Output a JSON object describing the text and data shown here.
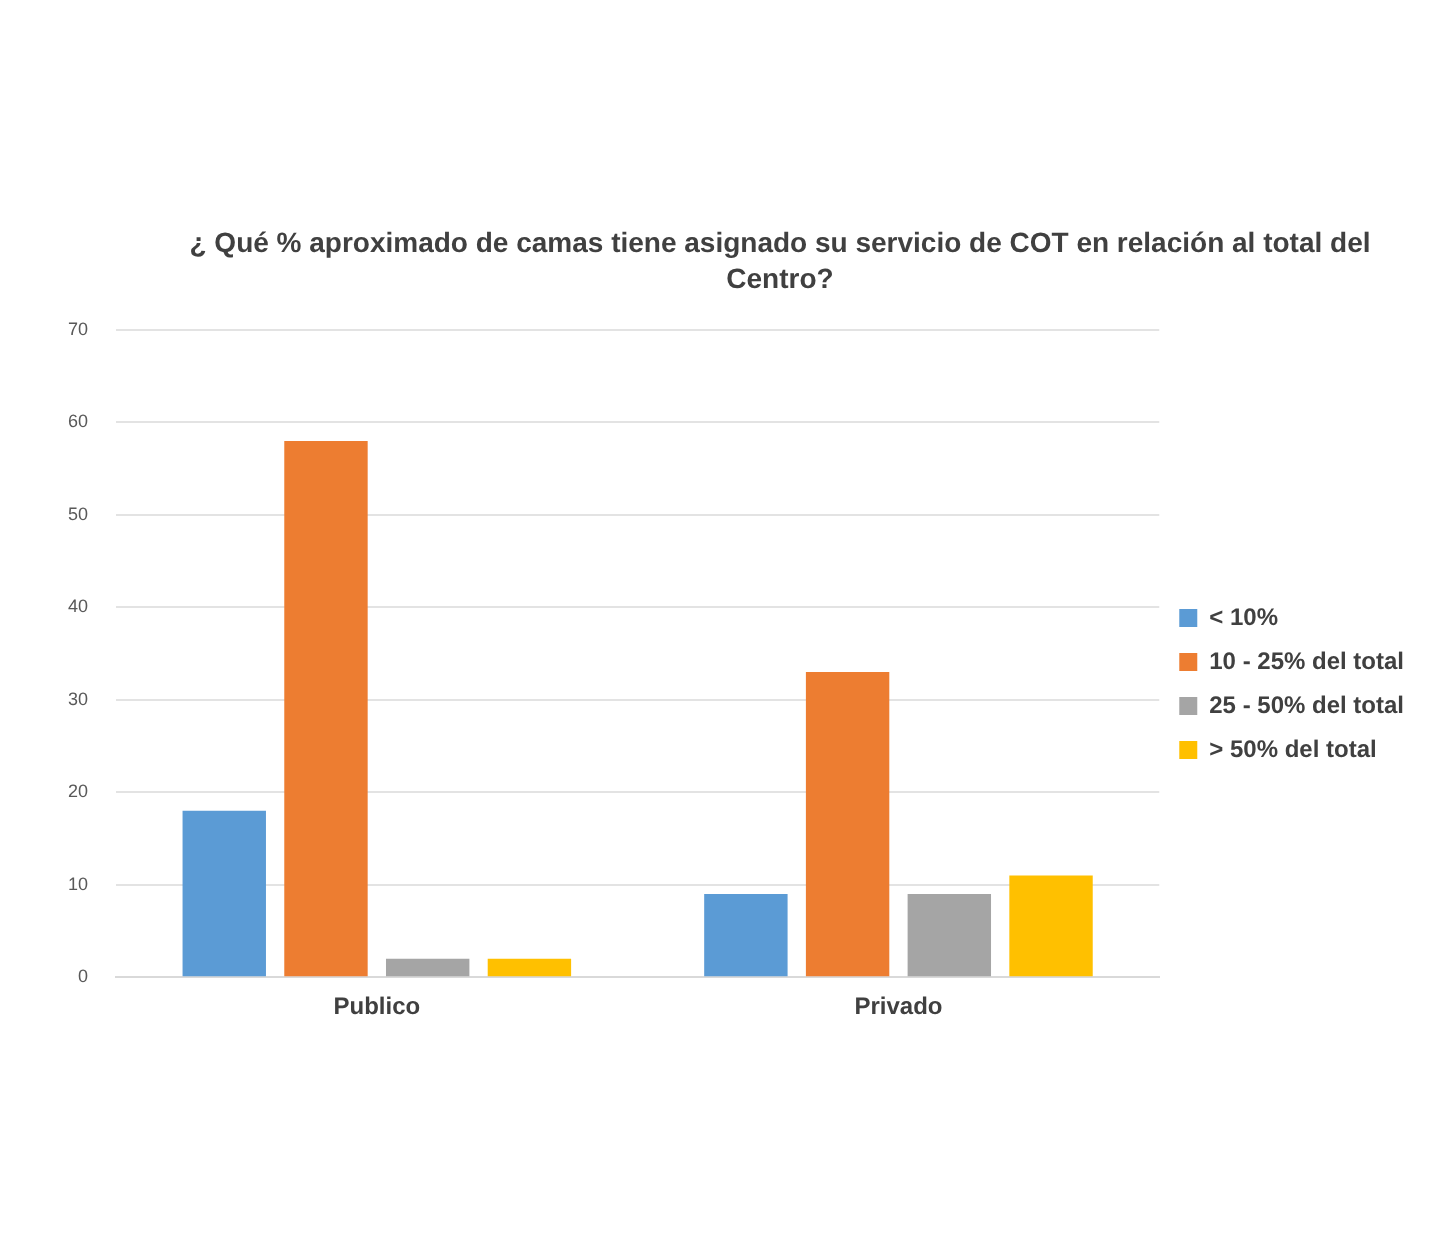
{
  "chart_data": {
    "type": "bar",
    "title": "¿ Qué % aproximado de camas tiene asignado su servicio de COT en relación al total del Centro?",
    "categories": [
      "Publico",
      "Privado"
    ],
    "series": [
      {
        "name": "< 10%",
        "color": "#5b9bd5",
        "values": [
          18,
          9
        ]
      },
      {
        "name": "10 - 25% del total",
        "color": "#ed7d31",
        "values": [
          58,
          33
        ]
      },
      {
        "name": "25 - 50% del total",
        "color": "#a5a5a5",
        "values": [
          2,
          9
        ]
      },
      {
        "name": "> 50% del total",
        "color": "#ffc000",
        "values": [
          2,
          11
        ]
      }
    ],
    "ylim": [
      0,
      70
    ],
    "yticks": [
      0,
      10,
      20,
      30,
      40,
      50,
      60,
      70
    ],
    "grid": "y",
    "legend": "right"
  }
}
